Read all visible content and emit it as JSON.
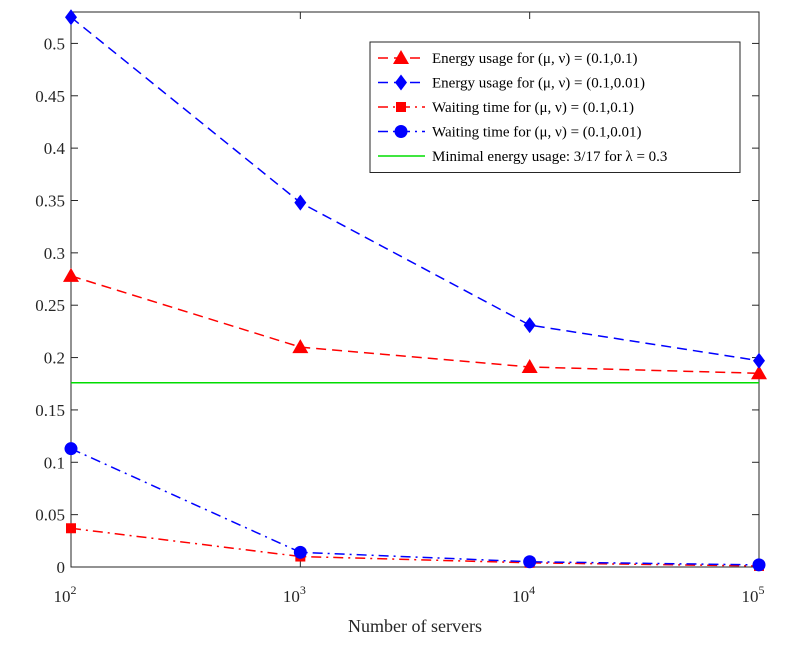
{
  "chart_data": {
    "type": "line",
    "title": "",
    "xlabel": "Number of servers",
    "ylabel": "",
    "x_scale": "log",
    "x": [
      100,
      1000,
      10000,
      100000
    ],
    "xlim": [
      100,
      100000
    ],
    "ylim": [
      0,
      0.53
    ],
    "x_ticks": [
      {
        "base": "10",
        "exp": "2"
      },
      {
        "base": "10",
        "exp": "3"
      },
      {
        "base": "10",
        "exp": "4"
      },
      {
        "base": "10",
        "exp": "5"
      }
    ],
    "y_ticks": [
      {
        "value": 0,
        "label": "0"
      },
      {
        "value": 0.05,
        "label": "0.05"
      },
      {
        "value": 0.1,
        "label": "0.1"
      },
      {
        "value": 0.15,
        "label": "0.15"
      },
      {
        "value": 0.2,
        "label": "0.2"
      },
      {
        "value": 0.25,
        "label": "0.25"
      },
      {
        "value": 0.3,
        "label": "0.3"
      },
      {
        "value": 0.35,
        "label": "0.35"
      },
      {
        "value": 0.4,
        "label": "0.4"
      },
      {
        "value": 0.45,
        "label": "0.45"
      },
      {
        "value": 0.5,
        "label": "0.5"
      }
    ],
    "series": [
      {
        "name": "Energy usage for (μ, ν) = (0.1,0.1)",
        "values": [
          0.278,
          0.21,
          0.191,
          0.185
        ],
        "color": "#ff0000",
        "dash": "dashed",
        "marker": "triangle"
      },
      {
        "name": "Energy usage for (μ, ν) = (0.1,0.01)",
        "values": [
          0.525,
          0.348,
          0.231,
          0.197
        ],
        "color": "#0000ff",
        "dash": "dashed",
        "marker": "diamond"
      },
      {
        "name": "Waiting time for (μ, ν) = (0.1,0.1)",
        "values": [
          0.037,
          0.01,
          0.004,
          0.001
        ],
        "color": "#ff0000",
        "dash": "dashdot",
        "marker": "square"
      },
      {
        "name": "Waiting time for (μ, ν) = (0.1,0.01)",
        "values": [
          0.113,
          0.014,
          0.005,
          0.002
        ],
        "color": "#0000ff",
        "dash": "dashdot",
        "marker": "circle"
      },
      {
        "name": "Minimal energy usage: 3/17 for λ = 0.3",
        "values": [
          0.176,
          0.176,
          0.176,
          0.176
        ],
        "color": "#00dd00",
        "dash": "solid",
        "marker": "none"
      }
    ],
    "legend_position": "top-right",
    "grid": false
  }
}
